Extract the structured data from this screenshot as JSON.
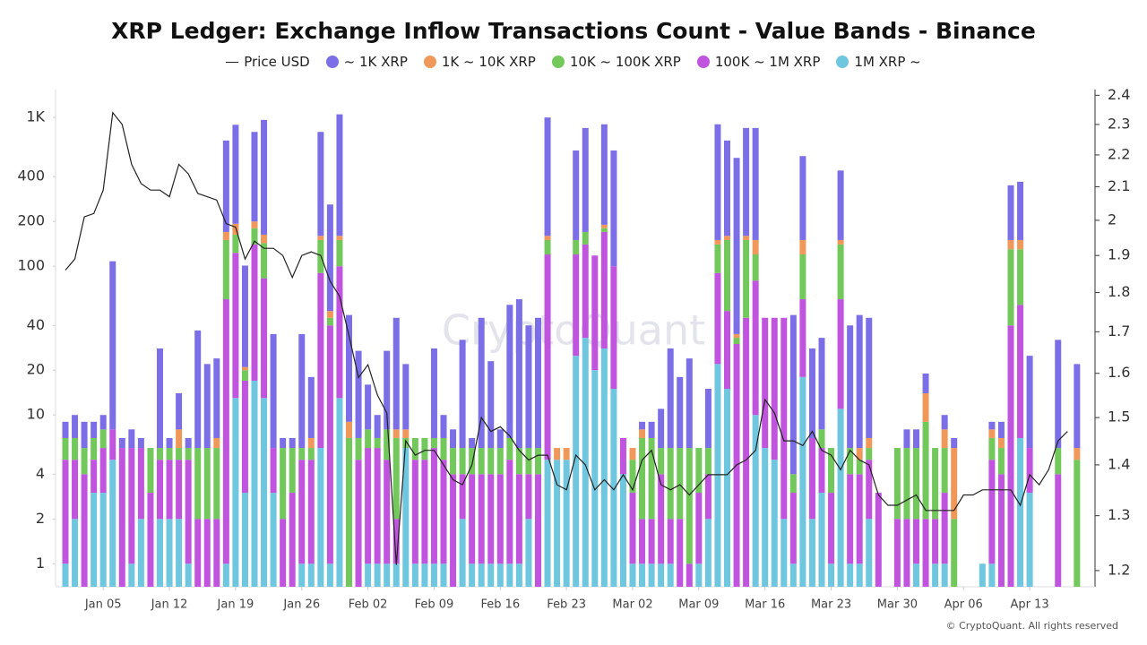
{
  "chart_data": {
    "type": "bar",
    "stacked": true,
    "title": "XRP Ledger: Exchange Inflow Transactions Count - Value Bands - Binance",
    "watermark": "CryptoQuant",
    "footer": "© CryptoQuant. All rights reserved",
    "ylog": true,
    "y2log": true,
    "ylim": [
      0.7,
      1540
    ],
    "yticks": [
      1,
      2,
      4,
      10,
      20,
      40,
      100,
      200,
      400,
      {
        "value": 1000,
        "label": "1K"
      }
    ],
    "y2lim": [
      1.172,
      2.42
    ],
    "y2ticks": [
      1.2,
      1.3,
      1.4,
      1.5,
      1.6,
      1.7,
      1.8,
      1.9,
      2,
      2.1,
      2.2,
      2.3,
      2.4
    ],
    "categories": [
      null,
      null,
      null,
      null,
      "Jan 05",
      null,
      null,
      null,
      null,
      null,
      null,
      "Jan 12",
      null,
      null,
      null,
      null,
      null,
      null,
      "Jan 19",
      null,
      null,
      null,
      null,
      null,
      null,
      "Jan 26",
      null,
      null,
      null,
      null,
      null,
      null,
      "Feb 02",
      null,
      null,
      null,
      null,
      null,
      null,
      "Feb 09",
      null,
      null,
      null,
      null,
      null,
      null,
      "Feb 16",
      null,
      null,
      null,
      null,
      null,
      null,
      "Feb 23",
      null,
      null,
      null,
      null,
      null,
      null,
      "Mar 02",
      null,
      null,
      null,
      null,
      null,
      null,
      "Mar 09",
      null,
      null,
      null,
      null,
      null,
      null,
      "Mar 16",
      null,
      null,
      null,
      null,
      null,
      null,
      "Mar 23",
      null,
      null,
      null,
      null,
      null,
      null,
      "Mar 30",
      null,
      null,
      null,
      null,
      null,
      null,
      "Apr 06",
      null,
      null,
      null,
      null,
      null,
      null,
      "Apr 13",
      null,
      null,
      null,
      null,
      null
    ],
    "series": [
      {
        "name": "Price USD",
        "type": "line",
        "axis": "y2",
        "color": "#222222",
        "values": [
          1.86,
          1.89,
          2.01,
          2.02,
          2.09,
          2.34,
          2.3,
          2.17,
          2.11,
          2.09,
          2.09,
          2.07,
          2.17,
          2.14,
          2.08,
          2.07,
          2.06,
          1.99,
          1.98,
          1.89,
          1.94,
          1.92,
          1.92,
          1.9,
          1.84,
          1.9,
          1.91,
          1.9,
          1.83,
          1.79,
          1.69,
          1.59,
          1.62,
          1.55,
          1.51,
          1.21,
          1.45,
          1.42,
          1.43,
          1.43,
          1.4,
          1.37,
          1.36,
          1.4,
          1.5,
          1.47,
          1.48,
          1.46,
          1.43,
          1.41,
          1.42,
          1.42,
          1.36,
          1.35,
          1.42,
          1.4,
          1.35,
          1.37,
          1.35,
          1.38,
          1.35,
          1.41,
          1.43,
          1.36,
          1.35,
          1.36,
          1.34,
          1.36,
          1.38,
          1.38,
          1.38,
          1.4,
          1.41,
          1.43,
          1.54,
          1.51,
          1.45,
          1.45,
          1.44,
          1.47,
          1.43,
          1.42,
          1.39,
          1.43,
          1.41,
          1.4,
          1.34,
          1.32,
          1.32,
          1.33,
          1.34,
          1.31,
          1.31,
          1.31,
          1.31,
          1.34,
          1.34,
          1.35,
          1.35,
          1.35,
          1.35,
          1.32,
          1.38,
          1.36,
          1.39,
          1.45,
          1.47,
          null
        ]
      },
      {
        "name": "~ 1K XRP",
        "color": "#7b6ee6",
        "values": [
          2,
          3,
          3,
          2,
          2,
          100,
          1,
          2,
          1,
          0,
          22,
          1,
          6,
          1,
          31,
          16,
          17,
          530,
          700,
          80,
          600,
          800,
          29,
          1,
          1,
          29,
          11,
          640,
          210,
          890,
          38,
          20,
          8,
          3,
          19,
          37,
          14,
          0,
          0,
          21,
          3,
          2,
          26,
          1,
          39,
          17,
          2,
          48,
          54,
          34,
          39,
          840,
          0,
          0,
          450,
          680,
          0,
          710,
          500,
          0,
          0,
          1,
          2,
          5,
          22,
          12,
          18,
          0,
          9,
          750,
          540,
          500,
          690,
          700,
          0,
          0,
          0,
          43,
          400,
          21,
          25,
          0,
          290,
          34,
          41,
          38,
          0,
          0,
          0,
          2,
          2,
          5,
          0,
          2,
          1,
          0,
          0,
          0,
          1,
          2,
          200,
          220,
          19,
          0,
          0,
          26,
          0,
          16
        ]
      },
      {
        "name": "1K ~ 10K XRP",
        "color": "#f0975a",
        "values": [
          0,
          0,
          0,
          0,
          0,
          0,
          0,
          0,
          0,
          0,
          0,
          0,
          2,
          0,
          0,
          0,
          1,
          20,
          30,
          1,
          20,
          20,
          0,
          0,
          0,
          0,
          1,
          10,
          5,
          10,
          2,
          0,
          0,
          0,
          0,
          1,
          1,
          0,
          0,
          0,
          0,
          0,
          0,
          0,
          0,
          0,
          0,
          0,
          0,
          0,
          0,
          10,
          1,
          1,
          0,
          0,
          0,
          10,
          0,
          0,
          1,
          1,
          0,
          0,
          0,
          0,
          0,
          0,
          0,
          10,
          10,
          2,
          10,
          30,
          0,
          0,
          0,
          0,
          30,
          0,
          0,
          0,
          10,
          0,
          1,
          1,
          0,
          0,
          0,
          0,
          0,
          5,
          0,
          2,
          4,
          0,
          0,
          0,
          1,
          1,
          20,
          20,
          0,
          0,
          0,
          0,
          0,
          1
        ]
      },
      {
        "name": "10K ~ 100K XRP",
        "color": "#72c85a",
        "values": [
          2,
          2,
          2,
          2,
          2,
          0,
          0,
          0,
          0,
          3,
          1,
          1,
          1,
          1,
          4,
          4,
          4,
          90,
          40,
          3,
          40,
          60,
          0,
          4,
          3,
          1,
          1,
          60,
          5,
          50,
          7,
          2,
          2,
          1,
          3,
          5,
          1,
          2,
          2,
          1,
          2,
          2,
          2,
          2,
          2,
          2,
          2,
          2,
          2,
          2,
          2,
          30,
          0,
          0,
          30,
          30,
          0,
          10,
          0,
          0,
          2,
          5,
          5,
          2,
          4,
          4,
          5,
          3,
          2,
          50,
          100,
          3,
          105,
          40,
          0,
          0,
          0,
          1,
          60,
          0,
          2,
          3,
          80,
          2,
          1,
          1,
          0,
          0,
          4,
          4,
          4,
          7,
          4,
          3,
          2,
          0,
          0,
          0,
          2,
          2,
          90,
          75,
          0,
          0,
          0,
          2,
          0,
          5
        ]
      },
      {
        "name": "100K ~ 1M XRP",
        "color": "#c154df",
        "values": [
          4,
          3,
          4,
          2,
          3,
          3,
          6,
          5,
          4,
          3,
          3,
          3,
          3,
          4,
          2,
          2,
          2,
          59,
          110,
          14,
          123,
          70,
          3,
          2,
          3,
          4,
          4,
          84,
          39,
          87,
          0,
          5,
          5,
          5,
          4,
          1,
          0,
          4,
          4,
          5,
          4,
          4,
          2,
          3,
          3,
          3,
          3,
          4,
          3,
          2,
          4,
          115,
          0,
          0,
          95,
          107,
          98,
          142,
          85,
          3,
          2,
          1,
          1,
          3,
          1,
          2,
          1,
          2,
          2,
          68,
          35,
          30,
          45,
          70,
          39,
          40,
          43,
          2,
          42,
          5,
          3,
          2,
          49,
          3,
          3,
          3,
          3,
          0,
          2,
          2,
          1,
          2,
          1,
          2,
          0,
          0,
          0,
          0,
          4,
          4,
          40,
          48,
          3,
          0,
          0,
          4,
          0,
          0
        ]
      },
      {
        "name": "1M XRP ~",
        "color": "#6ec6df",
        "values": [
          1,
          2,
          0,
          3,
          3,
          5,
          0,
          1,
          2,
          0,
          2,
          2,
          2,
          1,
          0,
          0,
          0,
          1,
          13,
          3,
          17,
          13,
          3,
          0,
          0,
          1,
          1,
          6,
          1,
          13,
          0,
          0,
          1,
          1,
          1,
          1,
          6,
          1,
          1,
          1,
          1,
          0,
          2,
          1,
          1,
          1,
          1,
          1,
          1,
          2,
          0,
          5,
          5,
          5,
          25,
          33,
          20,
          28,
          15,
          4,
          1,
          1,
          1,
          1,
          1,
          0,
          0,
          1,
          2,
          22,
          15,
          0,
          0,
          10,
          6,
          5,
          2,
          1,
          18,
          2,
          3,
          1,
          11,
          1,
          1,
          2,
          0,
          0,
          0,
          0,
          1,
          0,
          1,
          1,
          0,
          0,
          0,
          1,
          1,
          0,
          0,
          7,
          3,
          0,
          0,
          0,
          0,
          0
        ]
      }
    ]
  }
}
